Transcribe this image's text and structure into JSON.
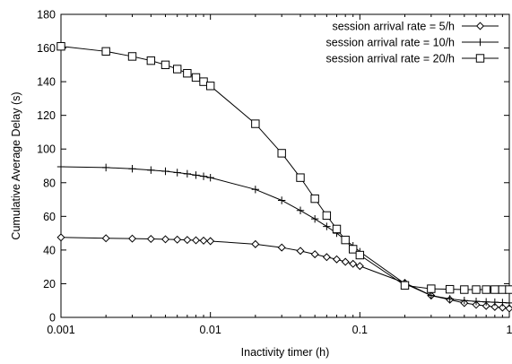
{
  "chart_data": {
    "type": "line",
    "xscale": "log",
    "xlim": [
      0.001,
      1
    ],
    "ylim": [
      0,
      180
    ],
    "xticks": [
      "0.001",
      "0.01",
      "0.1",
      "1"
    ],
    "yticks": [
      "0",
      "20",
      "40",
      "60",
      "80",
      "100",
      "120",
      "140",
      "160",
      "180"
    ],
    "xlabel": "Inactivity timer (h)",
    "ylabel": "Cumulative Average Delay (s)",
    "grid": false,
    "legend_position": "top-right",
    "series": [
      {
        "name": "session arrival rate = 5/h",
        "marker": "diamond",
        "points": [
          [
            0.001,
            47.5
          ],
          [
            0.002,
            47
          ],
          [
            0.003,
            46.8
          ],
          [
            0.004,
            46.6
          ],
          [
            0.005,
            46.4
          ],
          [
            0.006,
            46.2
          ],
          [
            0.007,
            46
          ],
          [
            0.008,
            45.8
          ],
          [
            0.009,
            45.6
          ],
          [
            0.01,
            45.3
          ],
          [
            0.02,
            43.5
          ],
          [
            0.03,
            41.5
          ],
          [
            0.04,
            39.5
          ],
          [
            0.05,
            37.5
          ],
          [
            0.06,
            35.8
          ],
          [
            0.07,
            34.5
          ],
          [
            0.08,
            33
          ],
          [
            0.09,
            31.8
          ],
          [
            0.1,
            30.5
          ],
          [
            0.2,
            20.5
          ],
          [
            0.3,
            13
          ],
          [
            0.4,
            10.5
          ],
          [
            0.5,
            8.5
          ],
          [
            0.6,
            7.5
          ],
          [
            0.7,
            6.8
          ],
          [
            0.8,
            6.2
          ],
          [
            0.9,
            5.8
          ],
          [
            1,
            5.3
          ]
        ]
      },
      {
        "name": "session arrival rate = 10/h",
        "marker": "plus",
        "points": [
          [
            0.001,
            89.5
          ],
          [
            0.002,
            89
          ],
          [
            0.003,
            88.3
          ],
          [
            0.004,
            87.5
          ],
          [
            0.005,
            86.8
          ],
          [
            0.006,
            86
          ],
          [
            0.007,
            85.3
          ],
          [
            0.008,
            84.5
          ],
          [
            0.009,
            83.8
          ],
          [
            0.01,
            83
          ],
          [
            0.02,
            76
          ],
          [
            0.03,
            69.5
          ],
          [
            0.04,
            63.5
          ],
          [
            0.05,
            58.5
          ],
          [
            0.06,
            54
          ],
          [
            0.07,
            50
          ],
          [
            0.08,
            46
          ],
          [
            0.09,
            42.5
          ],
          [
            0.1,
            39
          ],
          [
            0.2,
            20
          ],
          [
            0.3,
            13
          ],
          [
            0.4,
            11
          ],
          [
            0.5,
            10
          ],
          [
            0.6,
            9.5
          ],
          [
            0.7,
            9.2
          ],
          [
            0.8,
            9
          ],
          [
            0.9,
            8.8
          ],
          [
            1,
            8.6
          ]
        ]
      },
      {
        "name": "session arrival rate = 20/h",
        "marker": "square",
        "points": [
          [
            0.001,
            161
          ],
          [
            0.002,
            158
          ],
          [
            0.003,
            155
          ],
          [
            0.004,
            152.5
          ],
          [
            0.005,
            150
          ],
          [
            0.006,
            147.5
          ],
          [
            0.007,
            145
          ],
          [
            0.008,
            142.5
          ],
          [
            0.009,
            140
          ],
          [
            0.01,
            137.5
          ],
          [
            0.02,
            115
          ],
          [
            0.03,
            97.5
          ],
          [
            0.04,
            83
          ],
          [
            0.05,
            70.5
          ],
          [
            0.06,
            60.5
          ],
          [
            0.07,
            52.5
          ],
          [
            0.08,
            46
          ],
          [
            0.09,
            40.5
          ],
          [
            0.1,
            37
          ],
          [
            0.2,
            19
          ],
          [
            0.3,
            17
          ],
          [
            0.4,
            16.7
          ],
          [
            0.5,
            16.5
          ],
          [
            0.6,
            16.5
          ],
          [
            0.7,
            16.5
          ],
          [
            0.8,
            16.5
          ],
          [
            0.9,
            16.5
          ],
          [
            1,
            16.5
          ]
        ]
      }
    ]
  }
}
